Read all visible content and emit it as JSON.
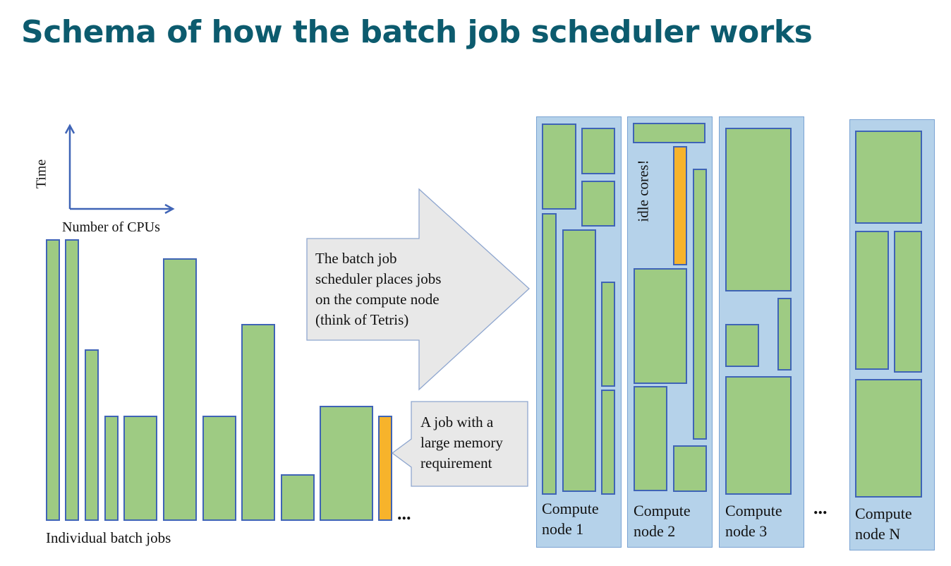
{
  "title": "Schema of how the batch job scheduler works",
  "axes": {
    "y_label": "Time",
    "x_label": "Number of CPUs"
  },
  "jobs_label": "Individual batch jobs",
  "jobs_ellipsis": "...",
  "nodes_ellipsis": "...",
  "arrow_text": "The batch job\nscheduler places jobs\non the compute node\n(think of Tetris)",
  "memory_callout": "A job with a\nlarge memory\nrequirement",
  "idle_label": "idle cores!",
  "nodes": [
    {
      "label": "Compute\nnode 1"
    },
    {
      "label": "Compute\nnode 2"
    },
    {
      "label": "Compute\nnode 3"
    },
    {
      "label": "Compute\nnode N"
    }
  ],
  "colors": {
    "title": "#0c5b6e",
    "job_fill": "#9ecb83",
    "job_border": "#3f64b6",
    "memory_job_fill": "#f7b32b",
    "node_fill": "#b5d2ea",
    "callout_fill": "#e8e8e8"
  }
}
